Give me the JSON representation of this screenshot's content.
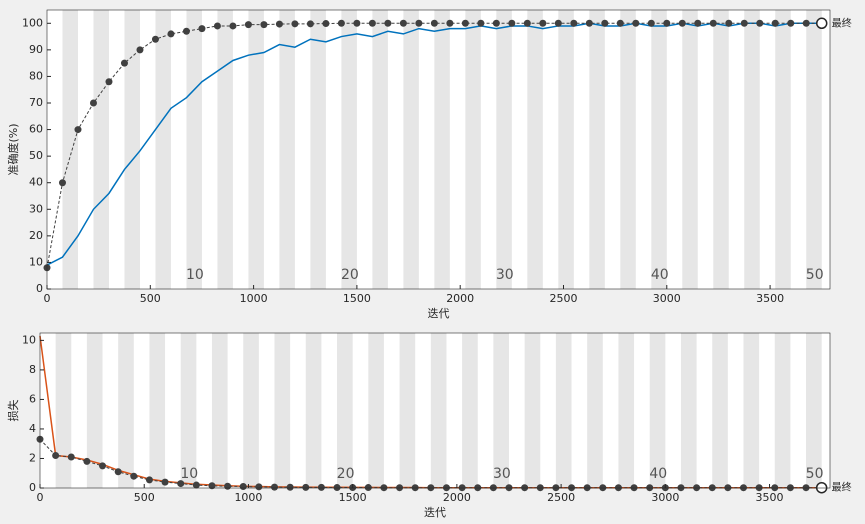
{
  "chart_data": [
    {
      "type": "line",
      "y_label": "准确度(%)",
      "x_label": "迭代",
      "end_label": "最终",
      "xlim": [
        0,
        3790
      ],
      "xticks": [
        0,
        500,
        1000,
        1500,
        2000,
        2500,
        3000,
        3500
      ],
      "ylim": [
        0,
        105
      ],
      "yticks": [
        0,
        10,
        20,
        30,
        40,
        50,
        60,
        70,
        80,
        90,
        100
      ],
      "annotations": [
        {
          "text": "10",
          "x": 716
        },
        {
          "text": "20",
          "x": 1466
        },
        {
          "text": "30",
          "x": 2216
        },
        {
          "text": "40",
          "x": 2966
        },
        {
          "text": "50",
          "x": 3716
        }
      ],
      "x": [
        0,
        75,
        150,
        225,
        300,
        375,
        450,
        525,
        600,
        675,
        750,
        825,
        900,
        975,
        1050,
        1125,
        1200,
        1275,
        1350,
        1425,
        1500,
        1575,
        1650,
        1725,
        1800,
        1875,
        1950,
        2025,
        2100,
        2175,
        2250,
        2325,
        2400,
        2475,
        2550,
        2625,
        2700,
        2775,
        2850,
        2925,
        3000,
        3075,
        3150,
        3225,
        3300,
        3375,
        3450,
        3525,
        3600,
        3675,
        3750
      ],
      "series": [
        {
          "color": "#0072bd",
          "style": "line",
          "values": [
            9,
            12,
            20,
            30,
            36,
            45,
            52,
            60,
            68,
            72,
            78,
            82,
            86,
            88,
            89,
            92,
            91,
            94,
            93,
            95,
            96,
            95,
            97,
            96,
            98,
            97,
            98,
            98,
            99,
            98,
            99,
            99,
            98,
            99,
            99,
            100,
            99,
            99,
            100,
            99,
            99,
            100,
            99,
            100,
            99,
            100,
            100,
            99,
            100,
            100,
            100
          ]
        },
        {
          "color": "#404040",
          "style": "dots",
          "values": [
            8,
            40,
            60,
            70,
            78,
            85,
            90,
            94,
            96,
            97,
            98,
            99,
            99,
            99.5,
            99.5,
            99.7,
            99.8,
            99.8,
            99.9,
            100,
            100,
            100,
            100,
            100,
            100,
            100,
            100,
            100,
            100,
            100,
            100,
            100,
            100,
            100,
            100,
            100,
            100,
            100,
            100,
            100,
            100,
            100,
            100,
            100,
            100,
            100,
            100,
            100,
            100,
            100,
            100
          ]
        }
      ]
    },
    {
      "type": "line",
      "y_label": "损失",
      "x_label": "迭代",
      "end_label": "最终",
      "xlim": [
        0,
        3790
      ],
      "xticks": [
        0,
        500,
        1000,
        1500,
        2000,
        2500,
        3000,
        3500
      ],
      "ylim": [
        0,
        10.5
      ],
      "yticks": [
        0,
        2,
        4,
        6,
        8,
        10
      ],
      "annotations": [
        {
          "text": "10",
          "x": 716
        },
        {
          "text": "20",
          "x": 1466
        },
        {
          "text": "30",
          "x": 2216
        },
        {
          "text": "40",
          "x": 2966
        },
        {
          "text": "50",
          "x": 3716
        }
      ],
      "x": [
        0,
        75,
        150,
        225,
        300,
        375,
        450,
        525,
        600,
        675,
        750,
        825,
        900,
        975,
        1050,
        1125,
        1200,
        1275,
        1350,
        1425,
        1500,
        1575,
        1650,
        1725,
        1800,
        1875,
        1950,
        2025,
        2100,
        2175,
        2250,
        2325,
        2400,
        2475,
        2550,
        2625,
        2700,
        2775,
        2850,
        2925,
        3000,
        3075,
        3150,
        3225,
        3300,
        3375,
        3450,
        3525,
        3600,
        3675,
        3750
      ],
      "series": [
        {
          "color": "#d95319",
          "style": "line",
          "values": [
            10.3,
            2.2,
            2.1,
            1.9,
            1.6,
            1.2,
            0.9,
            0.6,
            0.45,
            0.35,
            0.25,
            0.2,
            0.15,
            0.12,
            0.1,
            0.08,
            0.07,
            0.06,
            0.05,
            0.05,
            0.04,
            0.04,
            0.03,
            0.03,
            0.03,
            0.02,
            0.02,
            0.02,
            0.02,
            0.02,
            0.02,
            0.02,
            0.02,
            0.02,
            0.02,
            0.02,
            0.02,
            0.02,
            0.02,
            0.02,
            0.02,
            0.02,
            0.02,
            0.02,
            0.02,
            0.02,
            0.02,
            0.02,
            0.02,
            0.02,
            0.02
          ]
        },
        {
          "color": "#404040",
          "style": "dots",
          "values": [
            3.3,
            2.2,
            2.1,
            1.8,
            1.5,
            1.1,
            0.8,
            0.55,
            0.4,
            0.3,
            0.2,
            0.15,
            0.12,
            0.1,
            0.08,
            0.06,
            0.05,
            0.04,
            0.04,
            0.03,
            0.03,
            0.03,
            0.02,
            0.02,
            0.02,
            0.02,
            0.02,
            0.02,
            0.02,
            0.02,
            0.02,
            0.02,
            0.02,
            0.02,
            0.02,
            0.02,
            0.02,
            0.02,
            0.02,
            0.02,
            0.02,
            0.02,
            0.02,
            0.02,
            0.02,
            0.02,
            0.02,
            0.02,
            0.02,
            0.02,
            0.02
          ]
        }
      ]
    }
  ]
}
